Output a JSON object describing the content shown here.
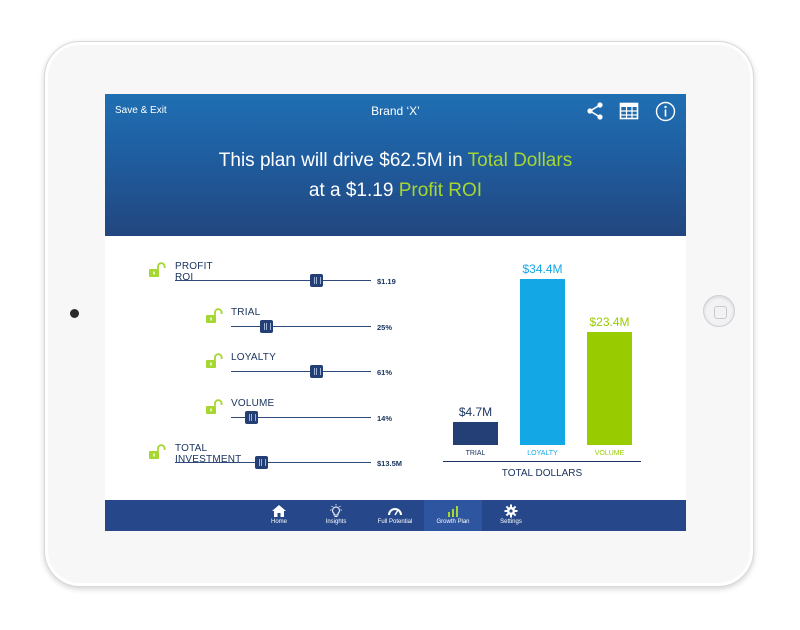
{
  "header": {
    "save_exit": "Save & Exit",
    "brand": "Brand ‘X’",
    "icons": [
      "share-icon",
      "table-icon",
      "info-icon"
    ],
    "headline_line1_prefix": "This plan will drive $62.5M in ",
    "headline_line1_highlight": "Total Dollars",
    "headline_line2_prefix": "at a $1.19 ",
    "headline_line2_highlight": "Profit ROI"
  },
  "controls": [
    {
      "label": "PROFIT ROI",
      "value": "$1.19",
      "level": 0.72
    },
    {
      "label": "TRIAL",
      "value": "25%",
      "level": 0.25
    },
    {
      "label": "LOYALTY",
      "value": "61%",
      "level": 0.61
    },
    {
      "label": "VOLUME",
      "value": "14%",
      "level": 0.14
    },
    {
      "label": "TOTAL INVESTMENT",
      "value": "$13.5M",
      "level": 0.44
    }
  ],
  "chart_data": {
    "type": "bar",
    "categories": [
      "TRIAL",
      "LOYALTY",
      "VOLUME"
    ],
    "values": [
      4.7,
      34.4,
      23.4
    ],
    "value_labels": [
      "$4.7M",
      "$34.4M",
      "$23.4M"
    ],
    "colors": [
      "#243f75",
      "#14a7e6",
      "#99cc00"
    ],
    "xlabel": "TOTAL DOLLARS",
    "ylim": [
      0,
      34.4
    ]
  },
  "tabs": [
    {
      "label": "Home",
      "icon": "home-icon"
    },
    {
      "label": "Insights",
      "icon": "lightbulb-icon"
    },
    {
      "label": "Full Potential",
      "icon": "gauge-icon"
    },
    {
      "label": "Growth Plan",
      "icon": "growth-chart-icon",
      "active": true
    },
    {
      "label": "Settings",
      "icon": "gear-icon"
    }
  ],
  "colors": {
    "accent_green": "#a6d630",
    "navy": "#243f75",
    "header_blue": "#1f5d9f"
  }
}
